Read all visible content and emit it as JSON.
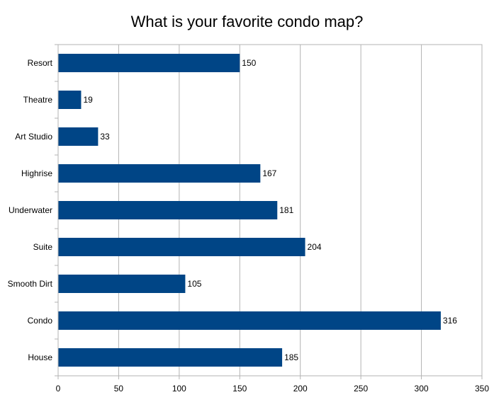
{
  "chart_data": {
    "type": "bar",
    "orientation": "horizontal",
    "title": "What is your favorite condo map?",
    "categories": [
      "Resort",
      "Theatre",
      "Art Studio",
      "Highrise",
      "Underwater",
      "Suite",
      "Smooth Dirt",
      "Condo",
      "House"
    ],
    "values": [
      150,
      19,
      33,
      167,
      181,
      204,
      105,
      316,
      185
    ],
    "xlim": [
      0,
      350
    ],
    "x_ticks": [
      "0",
      "50",
      "100",
      "150",
      "200",
      "250",
      "300",
      "350"
    ],
    "grid": true,
    "legend": "none",
    "bar_color": "#004586"
  }
}
